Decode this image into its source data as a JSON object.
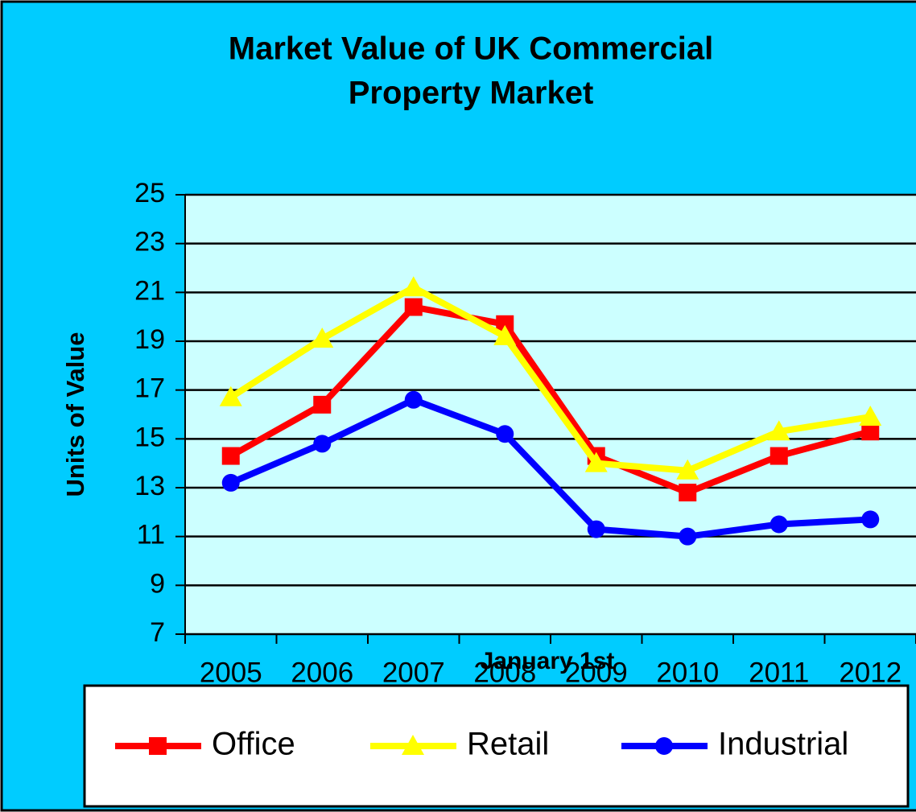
{
  "chart_data": {
    "type": "line",
    "title": [
      "Market Value of UK Commercial",
      "Property Market"
    ],
    "x_label": "January 1st",
    "y_label": "Units of Value",
    "categories": [
      "2005",
      "2006",
      "2007",
      "2008",
      "2009",
      "2010",
      "2011",
      "2012"
    ],
    "series": [
      {
        "name": "Office",
        "color": "#ff0000",
        "marker": "square",
        "values": [
          14.3,
          16.4,
          20.4,
          19.7,
          14.3,
          12.8,
          14.3,
          15.3
        ]
      },
      {
        "name": "Retail",
        "color": "#ffff00",
        "marker": "triangle",
        "values": [
          16.7,
          19.1,
          21.2,
          19.2,
          14.0,
          13.7,
          15.3,
          15.9
        ]
      },
      {
        "name": "Industrial",
        "color": "#0000ff",
        "marker": "circle",
        "values": [
          13.2,
          14.8,
          16.6,
          15.2,
          11.3,
          11.0,
          11.5,
          11.7
        ]
      }
    ],
    "ylim": [
      7,
      25
    ],
    "yticks": [
      7,
      9,
      11,
      13,
      15,
      17,
      19,
      21,
      23,
      25
    ],
    "grid": true,
    "legend": "bottom"
  }
}
